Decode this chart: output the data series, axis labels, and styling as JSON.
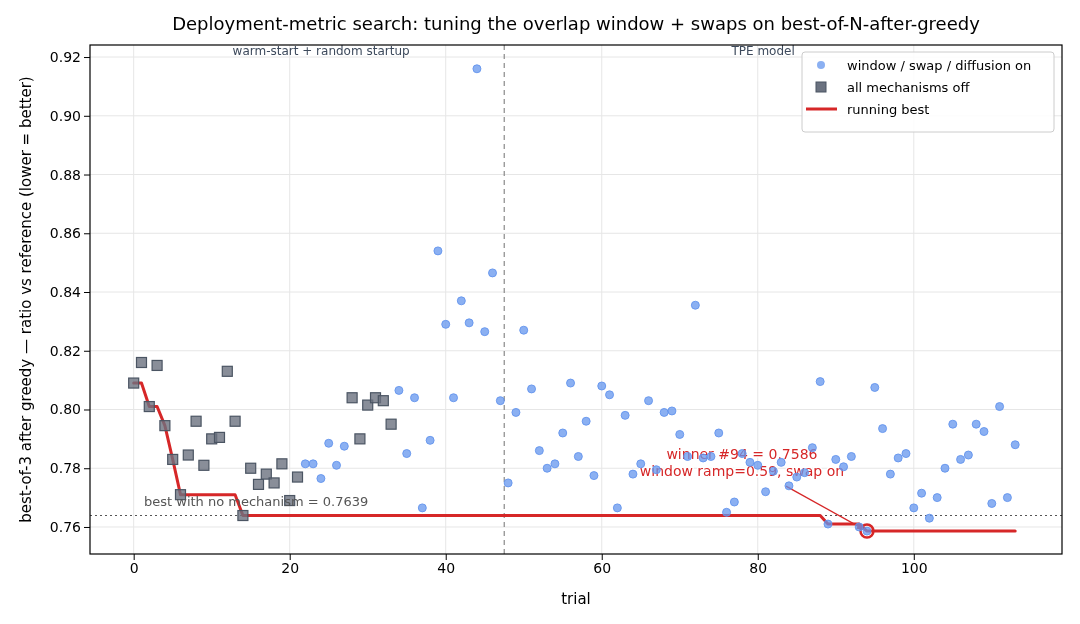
{
  "chart_data": {
    "type": "scatter",
    "title": "Deployment-metric search: tuning the overlap window + swaps on best-of-N-after-greedy",
    "xlabel": "trial",
    "ylabel": "best-of-3 after greedy — ratio vs reference  (lower = better)",
    "xlim": [
      -5.6,
      119
    ],
    "ylim": [
      0.7508,
      0.9241
    ],
    "xticks": [
      0,
      20,
      40,
      60,
      80,
      100
    ],
    "yticks": [
      0.76,
      0.78,
      {
        "value": 0.8,
        "label": "0.80"
      },
      0.82,
      0.84,
      0.86,
      0.88,
      {
        "value": 0.9,
        "label": "0.90"
      },
      0.92
    ],
    "grid": true,
    "legend": "top right",
    "series": [
      {
        "name": "window / swap / diffusion on",
        "marker": "circle",
        "color": "#6495ed",
        "x": [
          22,
          23,
          24,
          25,
          26,
          27,
          34,
          35,
          36,
          37,
          38,
          39,
          40,
          41,
          42,
          43,
          44,
          45,
          46,
          47,
          48,
          49,
          50,
          51,
          52,
          53,
          54,
          55,
          56,
          57,
          58,
          59,
          60,
          61,
          62,
          63,
          64,
          65,
          66,
          67,
          68,
          69,
          70,
          71,
          72,
          73,
          74,
          75,
          76,
          77,
          78,
          79,
          80,
          81,
          82,
          83,
          84,
          85,
          86,
          87,
          88,
          89,
          90,
          91,
          92,
          93,
          94,
          95,
          96,
          97,
          98,
          99,
          100,
          101,
          102,
          103,
          104,
          105,
          106,
          107,
          108,
          109,
          110,
          111,
          112,
          113
        ],
        "values": [
          0.7815,
          0.7815,
          0.7765,
          0.7885,
          0.781,
          0.7875,
          0.8065,
          0.785,
          0.804,
          0.7665,
          0.7895,
          0.854,
          0.829,
          0.804,
          0.837,
          0.8295,
          0.916,
          0.8265,
          0.8465,
          0.803,
          0.775,
          0.799,
          0.827,
          0.807,
          0.786,
          0.78,
          0.7815,
          0.792,
          0.809,
          0.784,
          0.796,
          0.7775,
          0.808,
          0.805,
          0.7665,
          0.798,
          0.778,
          0.7815,
          0.803,
          0.7795,
          0.799,
          0.7995,
          0.7915,
          0.784,
          0.8355,
          0.7835,
          0.784,
          0.792,
          0.765,
          0.7685,
          0.785,
          0.782,
          0.781,
          0.772,
          0.779,
          0.782,
          0.774,
          0.777,
          0.7785,
          0.787,
          0.8095,
          0.761,
          0.783,
          0.7805,
          0.784,
          0.76,
          0.7586,
          0.8075,
          0.7935,
          0.778,
          0.7835,
          0.785,
          0.7665,
          0.7715,
          0.763,
          0.77,
          0.78,
          0.795,
          0.783,
          0.7845,
          0.795,
          0.7925,
          0.768,
          0.801,
          0.77,
          0.788
        ]
      },
      {
        "name": "all mechanisms off",
        "marker": "square",
        "color": "#6b7280",
        "x": [
          0,
          1,
          2,
          3,
          4,
          5,
          6,
          7,
          8,
          9,
          10,
          11,
          12,
          13,
          14,
          15,
          16,
          17,
          18,
          19,
          20,
          21,
          28,
          29,
          30,
          31,
          32,
          33
        ],
        "values": [
          0.809,
          0.816,
          0.801,
          0.815,
          0.7945,
          0.783,
          0.771,
          0.7845,
          0.796,
          0.781,
          0.79,
          0.7905,
          0.813,
          0.796,
          0.7639,
          0.78,
          0.7745,
          0.778,
          0.775,
          0.7815,
          0.769,
          0.777,
          0.804,
          0.79,
          0.8015,
          0.804,
          0.803,
          0.795
        ]
      },
      {
        "name": "running best",
        "type": "line",
        "marker": "none",
        "line_style": "solid",
        "color": "#d62728",
        "x": [
          0,
          1,
          2,
          3,
          4,
          5,
          6,
          13,
          14,
          88,
          89,
          93,
          94,
          113
        ],
        "values": [
          0.809,
          0.809,
          0.801,
          0.801,
          0.7945,
          0.783,
          0.771,
          0.771,
          0.7639,
          0.7639,
          0.761,
          0.761,
          0.7586,
          0.7586
        ]
      }
    ],
    "ref_lines": [
      {
        "axis": "y",
        "value": 0.7639,
        "label": "best with no mechanism = 0.7639",
        "color": "#555555",
        "line_style": "dotted"
      },
      {
        "axis": "x",
        "value": 47.5,
        "label": null,
        "color": "#888888",
        "line_style": "dashed"
      }
    ],
    "annotations": [
      "warm-start + random startup",
      "TPE model",
      {
        "text": "winner #94 = 0.7586\nwindow ramp=0.59, swap on",
        "x": 94,
        "y": 0.7586
      }
    ]
  }
}
